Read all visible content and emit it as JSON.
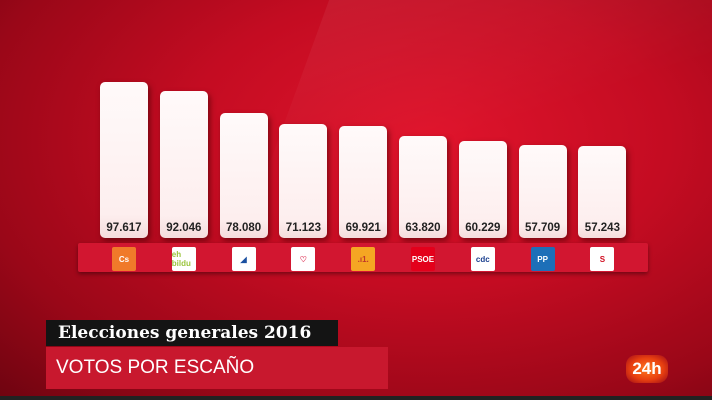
{
  "chart_data": {
    "type": "bar",
    "title": "VOTOS POR ESCAÑO",
    "subtitle": "Elecciones generales 2016",
    "categories": [
      "Cs",
      "EH Bildu",
      "CC",
      "Compromís",
      "ERC",
      "PSOE",
      "CDC",
      "PP",
      "PNV"
    ],
    "values": [
      97617,
      92046,
      78080,
      71123,
      69921,
      63820,
      60229,
      57709,
      57243
    ],
    "value_labels": [
      "97.617",
      "92.046",
      "78.080",
      "71.123",
      "69.921",
      "63.820",
      "60.229",
      "57.709",
      "57.243"
    ],
    "xlabel": "",
    "ylabel": "",
    "grid": false,
    "legend": "party logos below bars"
  },
  "header": {
    "title": "Elecciones generales 2016",
    "subtitle": "VOTOS POR ESCAÑO"
  },
  "channel": {
    "logo_text": "24h"
  },
  "logos": [
    {
      "text": "Cs",
      "bg": "#f07a2a",
      "fg": "#ffffff"
    },
    {
      "text": "eh bildu",
      "bg": "#ffffff",
      "fg": "#9ac43c"
    },
    {
      "text": "◢",
      "bg": "#ffffff",
      "fg": "#1a4fa0"
    },
    {
      "text": "♡",
      "bg": "#ffffff",
      "fg": "#e04060"
    },
    {
      "text": ".ı1.",
      "bg": "#f5a623",
      "fg": "#c0392b"
    },
    {
      "text": "PSOE",
      "bg": "#e3001b",
      "fg": "#ffffff"
    },
    {
      "text": "cdc",
      "bg": "#ffffff",
      "fg": "#1b3f8f"
    },
    {
      "text": "PP",
      "bg": "#1d6fb8",
      "fg": "#ffffff"
    },
    {
      "text": "S",
      "bg": "#ffffff",
      "fg": "#d10a1e"
    }
  ]
}
